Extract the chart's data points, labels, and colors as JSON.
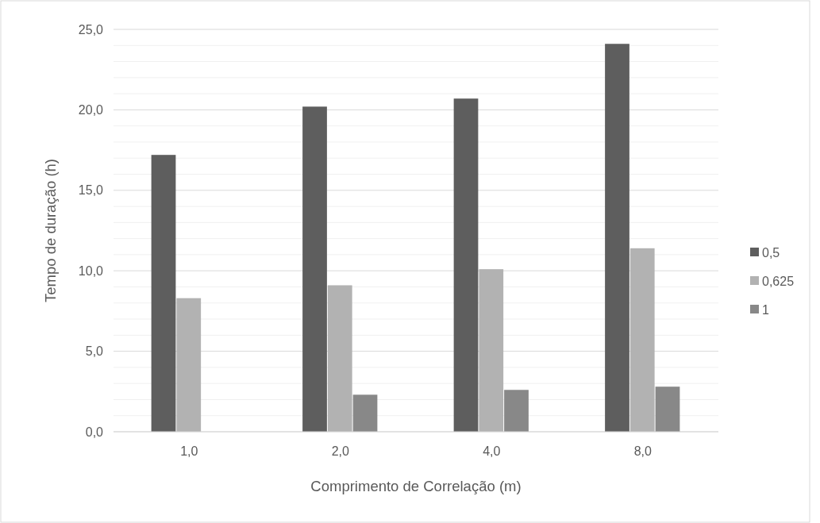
{
  "chart_data": {
    "type": "bar",
    "xlabel": "Comprimento de Correlação (m)",
    "ylabel": "Tempo de duração (h)",
    "categories": [
      "1,0",
      "2,0",
      "4,0",
      "8,0"
    ],
    "series": [
      {
        "name": "0,5",
        "color": "#5e5e5e",
        "values": [
          17.2,
          20.2,
          20.7,
          24.1
        ]
      },
      {
        "name": "0,625",
        "color": "#b2b2b2",
        "values": [
          8.3,
          9.1,
          10.1,
          11.4
        ]
      },
      {
        "name": "1",
        "color": "#888888",
        "values": [
          null,
          2.3,
          2.6,
          2.8
        ]
      }
    ],
    "ylim": [
      0,
      25
    ],
    "yticks": [
      {
        "value": 0,
        "label": "0,0"
      },
      {
        "value": 1,
        "label": null
      },
      {
        "value": 2,
        "label": null
      },
      {
        "value": 3,
        "label": null
      },
      {
        "value": 4,
        "label": null
      },
      {
        "value": 5,
        "label": "5,0"
      },
      {
        "value": 6,
        "label": null
      },
      {
        "value": 7,
        "label": null
      },
      {
        "value": 8,
        "label": null
      },
      {
        "value": 9,
        "label": null
      },
      {
        "value": 10,
        "label": "10,0"
      },
      {
        "value": 11,
        "label": null
      },
      {
        "value": 12,
        "label": null
      },
      {
        "value": 13,
        "label": null
      },
      {
        "value": 14,
        "label": null
      },
      {
        "value": 15,
        "label": "15,0"
      },
      {
        "value": 16,
        "label": null
      },
      {
        "value": 17,
        "label": null
      },
      {
        "value": 18,
        "label": null
      },
      {
        "value": 19,
        "label": null
      },
      {
        "value": 20,
        "label": "20,0"
      },
      {
        "value": 21,
        "label": null
      },
      {
        "value": 22,
        "label": null
      },
      {
        "value": 23,
        "label": null
      },
      {
        "value": 24,
        "label": null
      },
      {
        "value": 25,
        "label": "25,0"
      }
    ],
    "grid": "y",
    "legend": "right"
  }
}
